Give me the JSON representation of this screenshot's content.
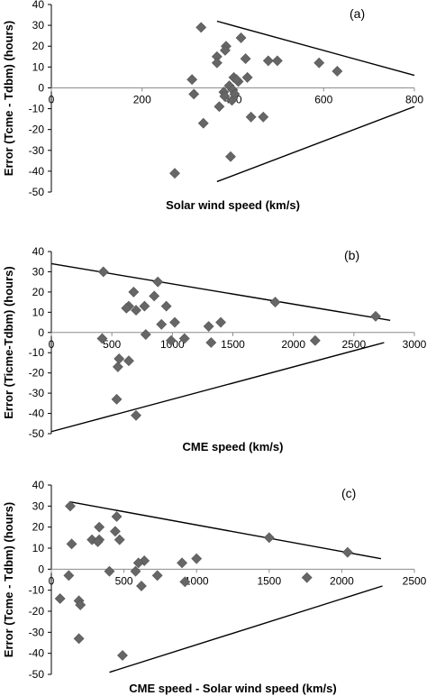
{
  "chart_data": [
    {
      "type": "scatter",
      "panel_label": "(a)",
      "xlabel": "Solar wind speed (km/s)",
      "ylabel": "Error (Tcme - Tdbm) (hours)",
      "xlim": [
        0,
        800
      ],
      "ylim": [
        -50,
        40
      ],
      "xticks": [
        0,
        200,
        400,
        600,
        800
      ],
      "yticks": [
        40,
        30,
        20,
        10,
        0,
        -10,
        -20,
        -30,
        -40,
        -50
      ],
      "marker_color": "#666666",
      "series": [
        {
          "points": [
            [
              330,
              29
            ],
            [
              418,
              24
            ],
            [
              385,
              20
            ],
            [
              383,
              18
            ],
            [
              365,
              15
            ],
            [
              428,
              14
            ],
            [
              365,
              12
            ],
            [
              478,
              13
            ],
            [
              498,
              13
            ],
            [
              590,
              12
            ],
            [
              630,
              8
            ],
            [
              402,
              5
            ],
            [
              412,
              3
            ],
            [
              408,
              4
            ],
            [
              432,
              5
            ],
            [
              310,
              4
            ],
            [
              392,
              1
            ],
            [
              400,
              -1
            ],
            [
              380,
              -2
            ],
            [
              382,
              -4
            ],
            [
              398,
              -6
            ],
            [
              314,
              -3
            ],
            [
              404,
              -3
            ],
            [
              440,
              -14
            ],
            [
              467,
              -14
            ],
            [
              335,
              -17
            ],
            [
              370,
              -9
            ],
            [
              395,
              -33
            ],
            [
              272,
              -41
            ]
          ]
        }
      ],
      "trend_lines": [
        {
          "x1": 365,
          "y1": 32,
          "x2": 800,
          "y2": 6
        },
        {
          "x1": 365,
          "y1": -45,
          "x2": 800,
          "y2": -9
        }
      ]
    },
    {
      "type": "scatter",
      "panel_label": "(b)",
      "xlabel": "CME speed (km/s)",
      "ylabel": "Error (Ticme-Tdbm) (hours)",
      "xlim": [
        0,
        3000
      ],
      "ylim": [
        -50,
        40
      ],
      "xticks": [
        0,
        500,
        1000,
        1500,
        2000,
        2500,
        3000
      ],
      "yticks": [
        40,
        30,
        20,
        10,
        0,
        -10,
        -20,
        -30,
        -40,
        -50
      ],
      "marker_color": "#666666",
      "series": [
        {
          "points": [
            [
              430,
              30
            ],
            [
              880,
              25
            ],
            [
              680,
              20
            ],
            [
              850,
              18
            ],
            [
              950,
              13
            ],
            [
              640,
              13
            ],
            [
              700,
              11
            ],
            [
              770,
              13
            ],
            [
              620,
              12
            ],
            [
              1850,
              15
            ],
            [
              2680,
              8
            ],
            [
              1020,
              5
            ],
            [
              910,
              4
            ],
            [
              1400,
              5
            ],
            [
              1300,
              3
            ],
            [
              780,
              -1
            ],
            [
              420,
              -3
            ],
            [
              990,
              -4
            ],
            [
              1100,
              -3
            ],
            [
              1320,
              -5
            ],
            [
              2180,
              -4
            ],
            [
              560,
              -13
            ],
            [
              550,
              -17
            ],
            [
              640,
              -14
            ],
            [
              540,
              -33
            ],
            [
              700,
              -41
            ]
          ]
        }
      ],
      "trend_lines": [
        {
          "x1": 0,
          "y1": 34,
          "x2": 2800,
          "y2": 6
        },
        {
          "x1": 0,
          "y1": -49,
          "x2": 2750,
          "y2": -5
        }
      ]
    },
    {
      "type": "scatter",
      "panel_label": "(c)",
      "xlabel": "CME speed - Solar wind speed (km/s)",
      "ylabel": "Error (Tcme - Tdbm) (hours)",
      "xlim": [
        0,
        2500
      ],
      "ylim": [
        -50,
        40
      ],
      "xticks": [
        0,
        500,
        1000,
        1500,
        2000,
        2500
      ],
      "yticks": [
        40,
        30,
        20,
        10,
        0,
        -10,
        -20,
        -30,
        -40,
        -50
      ],
      "marker_color": "#666666",
      "series": [
        {
          "points": [
            [
              130,
              30
            ],
            [
              450,
              25
            ],
            [
              330,
              20
            ],
            [
              440,
              18
            ],
            [
              280,
              14
            ],
            [
              330,
              14
            ],
            [
              320,
              13
            ],
            [
              470,
              14
            ],
            [
              140,
              12
            ],
            [
              1500,
              15
            ],
            [
              2040,
              8
            ],
            [
              1000,
              5
            ],
            [
              640,
              4
            ],
            [
              600,
              3
            ],
            [
              900,
              3
            ],
            [
              400,
              -1
            ],
            [
              580,
              -1
            ],
            [
              120,
              -3
            ],
            [
              730,
              -3
            ],
            [
              920,
              -6
            ],
            [
              620,
              -8
            ],
            [
              1760,
              -4
            ],
            [
              60,
              -14
            ],
            [
              190,
              -15
            ],
            [
              200,
              -17
            ],
            [
              190,
              -33
            ],
            [
              490,
              -41
            ]
          ]
        }
      ],
      "trend_lines": [
        {
          "x1": 130,
          "y1": 32,
          "x2": 2270,
          "y2": 5
        },
        {
          "x1": 400,
          "y1": -49,
          "x2": 2280,
          "y2": -8
        }
      ]
    }
  ]
}
